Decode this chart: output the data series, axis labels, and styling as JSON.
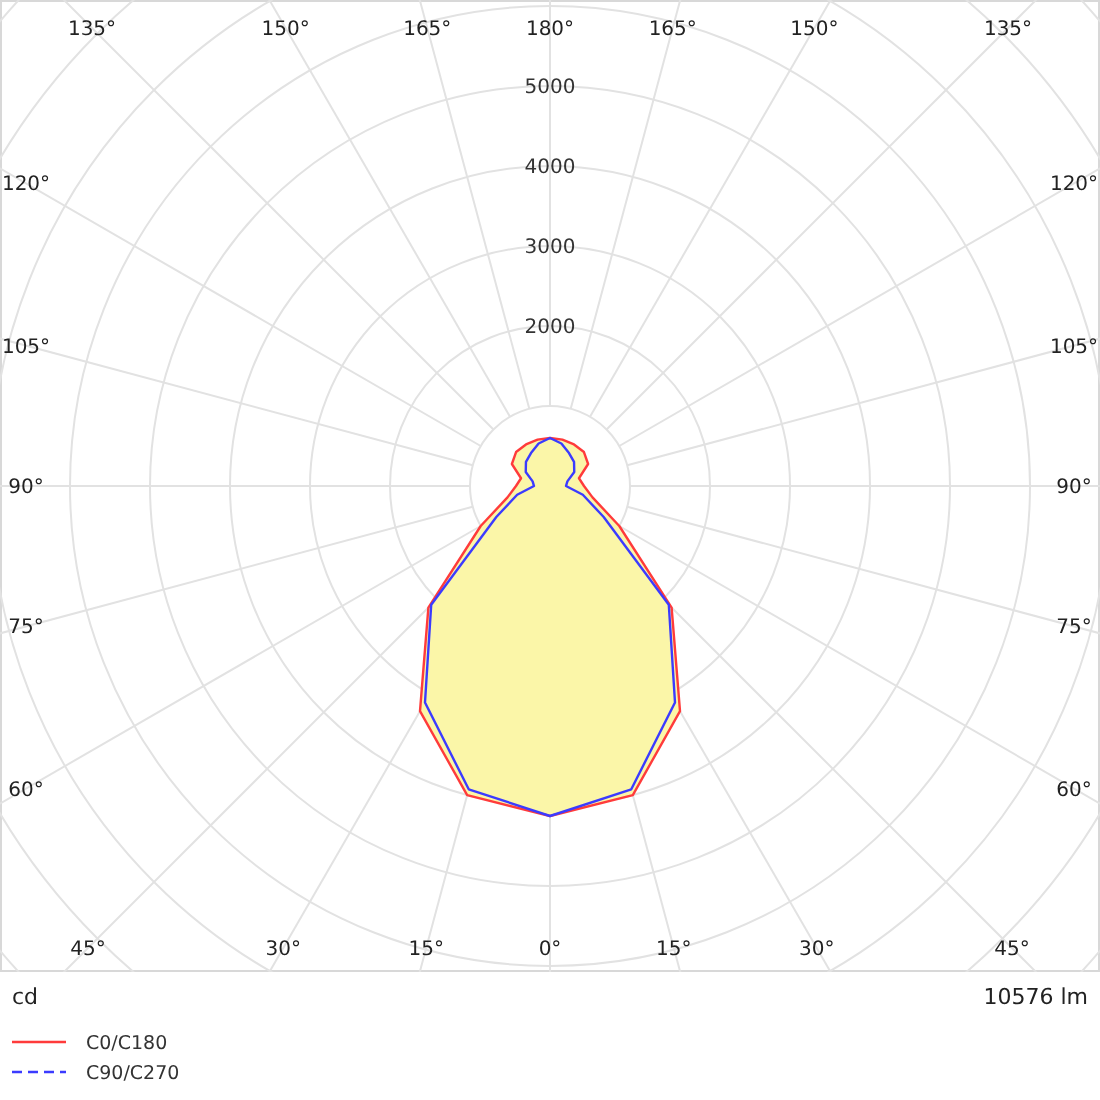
{
  "chart_data": {
    "type": "radar",
    "categories": [
      "180°",
      "165°",
      "150°",
      "135°",
      "120°",
      "105°",
      "90°",
      "75°",
      "60°",
      "45°",
      "30°",
      "15°",
      "0°",
      "15°",
      "30°",
      "45°",
      "60°",
      "75°",
      "90°",
      "105°",
      "120°",
      "135°",
      "150°",
      "165°"
    ],
    "series": [
      {
        "name": "C0/C180",
        "color": "#ff3b3b",
        "line_style": "solid",
        "values": [
          600,
          600,
          600,
          600,
          550,
          375,
          425,
          550,
          1000,
          2150,
          3250,
          4000,
          4125,
          4000,
          3250,
          2150,
          1000,
          550,
          425,
          375,
          550,
          600,
          600,
          600
        ]
      },
      {
        "name": "C90/C270",
        "color": "#3b3bff",
        "line_style": "dashed",
        "values": [
          600,
          550,
          475,
          425,
          350,
          225,
          200,
          425,
          775,
          2100,
          3125,
          3925,
          4125,
          3925,
          3125,
          2100,
          775,
          425,
          200,
          225,
          350,
          425,
          475,
          550
        ]
      }
    ],
    "ylim": [
      0,
      9000
    ],
    "yticks": [
      2000,
      3000,
      4000,
      5000
    ],
    "grid": true,
    "legend": "bottom left",
    "marker": "none",
    "annotations": [
      "cd",
      "10576 lm"
    ]
  }
}
